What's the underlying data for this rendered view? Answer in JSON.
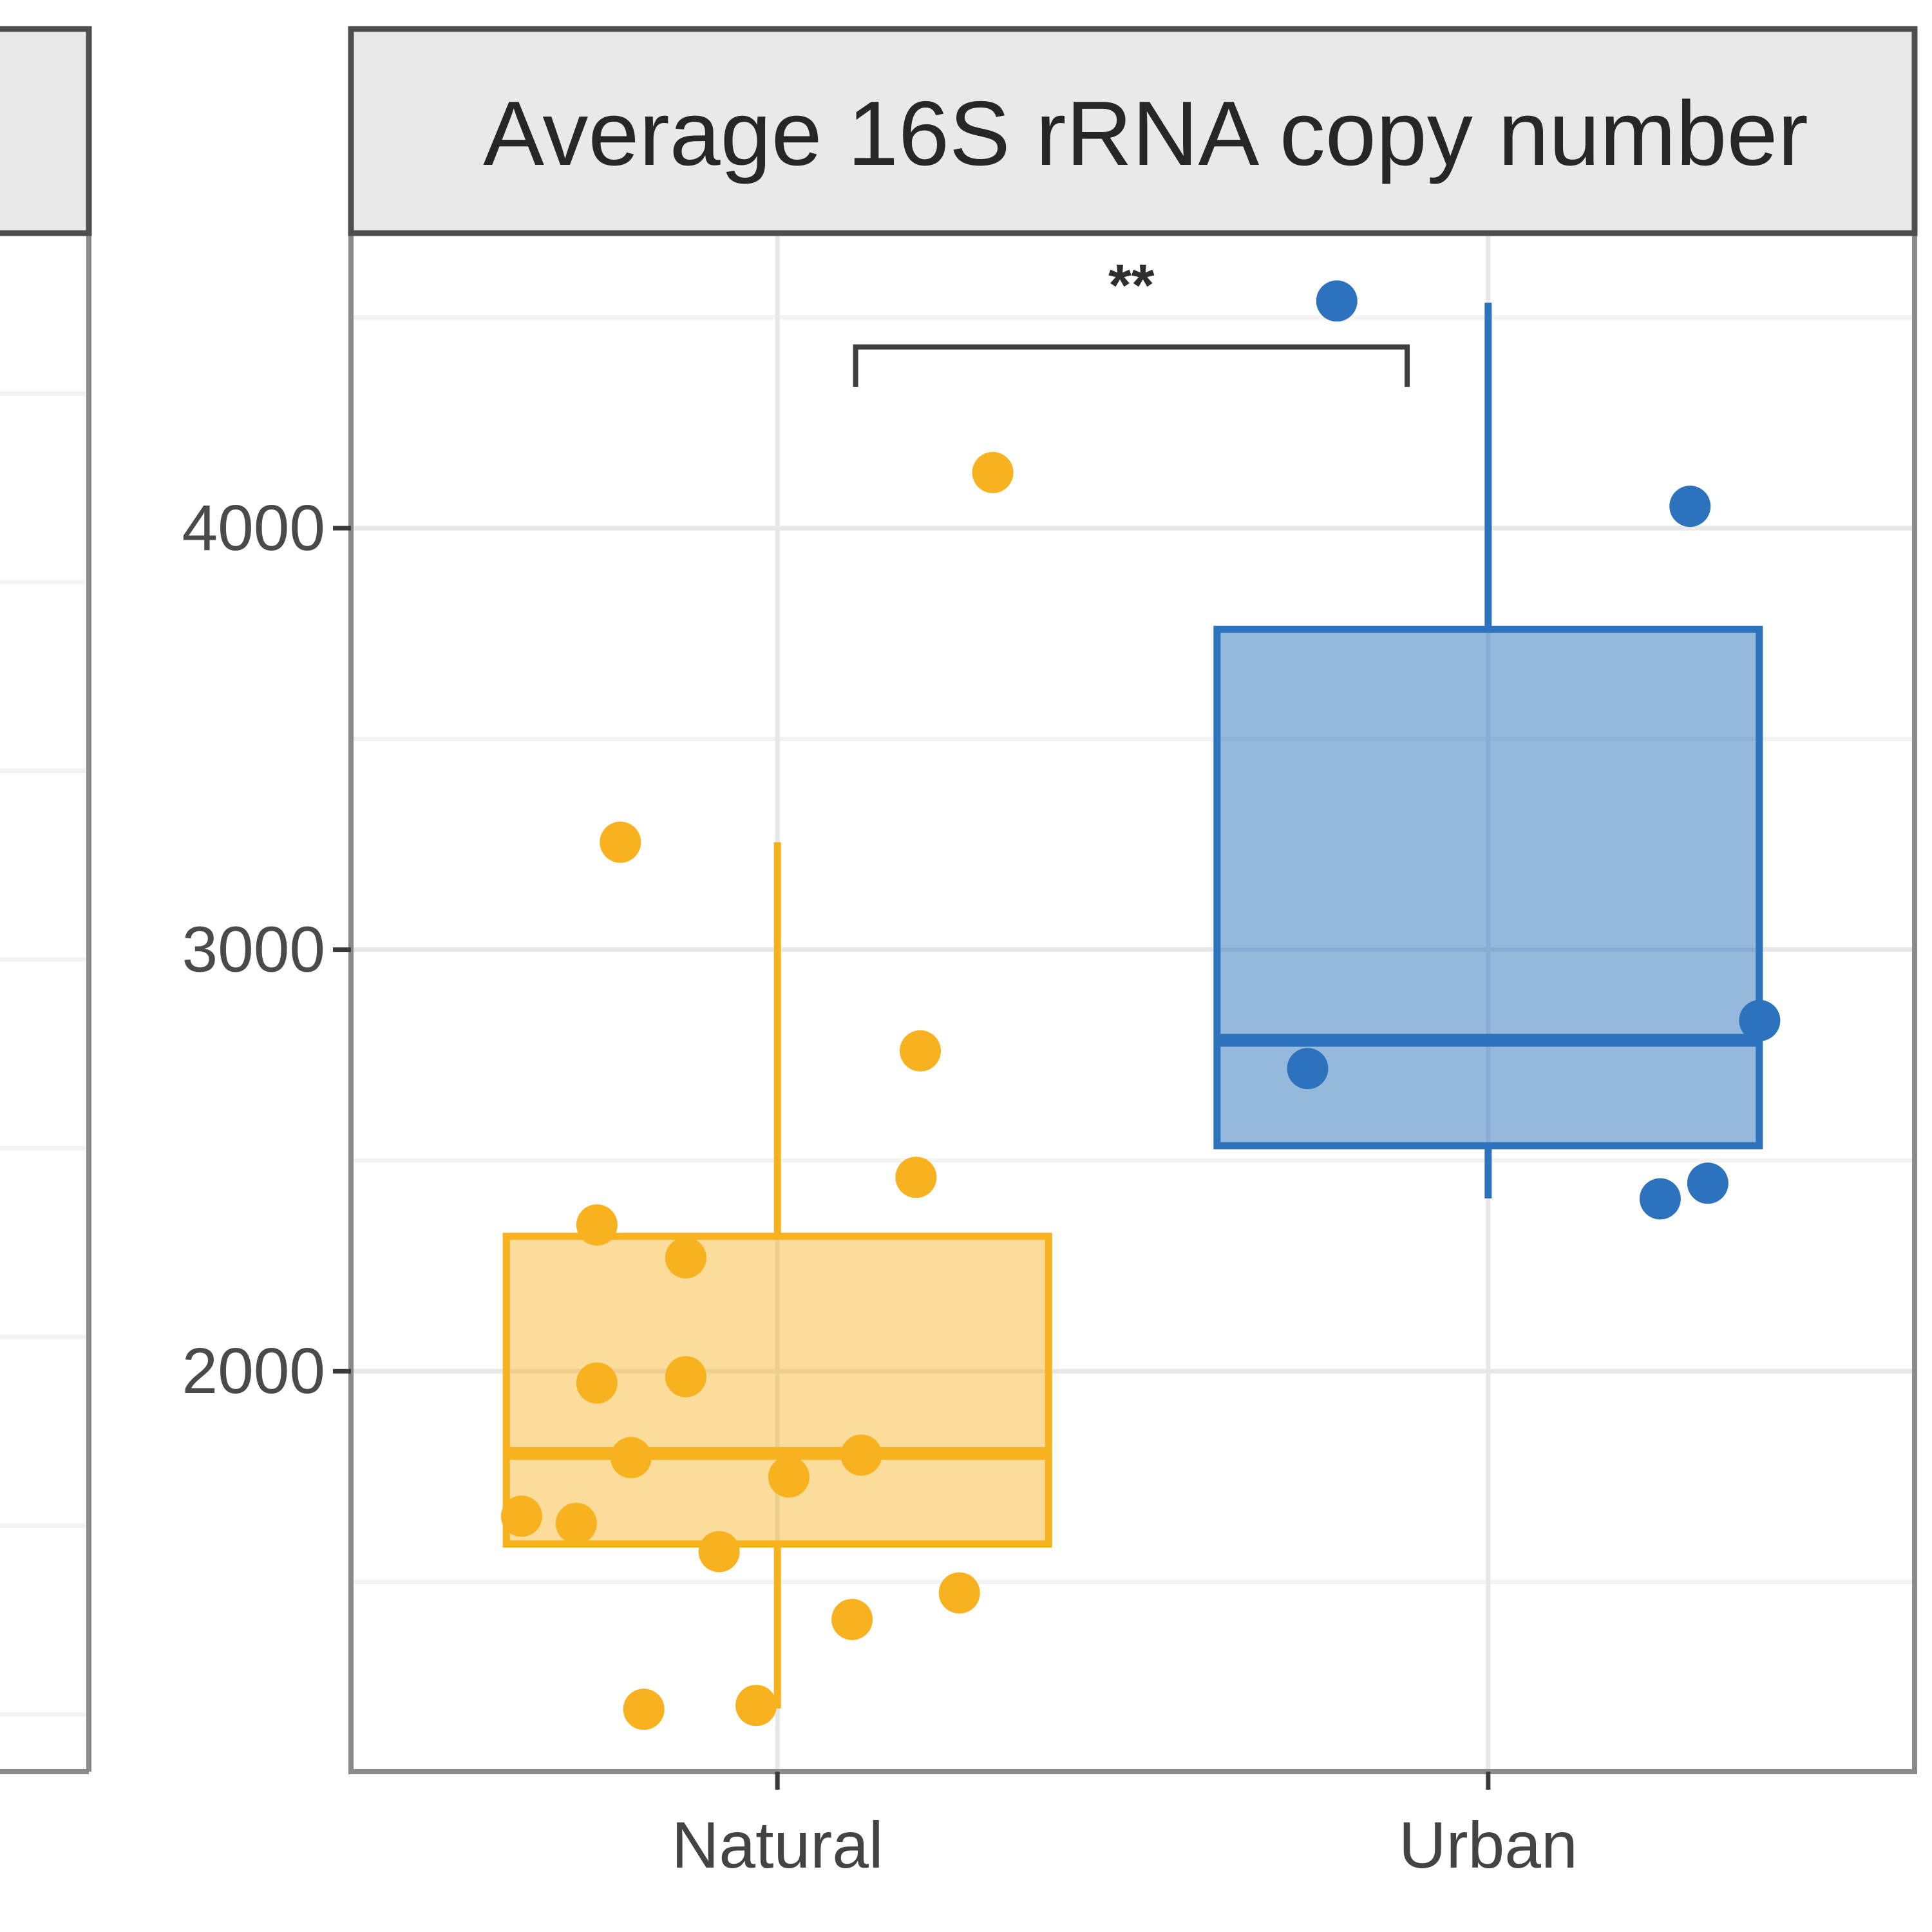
{
  "chart_data": {
    "type": "boxplot",
    "title": "Average 16S rRNA copy number",
    "categories": [
      "Natural",
      "Urban"
    ],
    "xlabel": "",
    "ylabel": "",
    "y_major_ticks": [
      4000,
      3000,
      2000
    ],
    "y_minor_ticks": [
      4500,
      3500,
      2500,
      1500
    ],
    "ylim": [
      1050,
      4700
    ],
    "grid": true,
    "legend": "none",
    "series": [
      {
        "name": "Natural",
        "color": "#F8B11F",
        "fill_opacity": 0.45,
        "box": {
          "q1": 1590,
          "median": 1805,
          "q3": 2320,
          "whisker_low": 1200,
          "whisker_high": 3255
        },
        "points": [
          [
            -0.254,
            2347
          ],
          [
            -0.129,
            2269
          ],
          [
            0.195,
            2460
          ],
          [
            -0.254,
            1972
          ],
          [
            -0.129,
            1987
          ],
          [
            -0.206,
            1795
          ],
          [
            0.016,
            1749
          ],
          [
            0.118,
            1801
          ],
          [
            -0.36,
            1656
          ],
          [
            -0.283,
            1639
          ],
          [
            -0.082,
            1572
          ],
          [
            0.105,
            1411
          ],
          [
            0.256,
            1474
          ],
          [
            -0.188,
            1198
          ],
          [
            -0.03,
            1207
          ],
          [
            -0.221,
            3255
          ],
          [
            0.303,
            4132
          ],
          [
            0.201,
            2760
          ]
        ]
      },
      {
        "name": "Urban",
        "color": "#2D72BC",
        "fill_opacity": 0.5,
        "box": {
          "q1": 2535,
          "median": 2785,
          "q3": 3760,
          "whisker_low": 2410,
          "whisker_high": 4535
        },
        "points": [
          [
            -0.213,
            4539
          ],
          [
            0.284,
            4052
          ],
          [
            -0.254,
            2718
          ],
          [
            0.382,
            2832
          ],
          [
            0.242,
            2409
          ],
          [
            0.309,
            2446
          ]
        ]
      }
    ],
    "significance": {
      "label": "**",
      "x1_pos": 1.11,
      "x2_pos": 1.886,
      "y_value": 4430,
      "tick_drop_value": 95
    }
  },
  "partial_left_facet_visible": true
}
